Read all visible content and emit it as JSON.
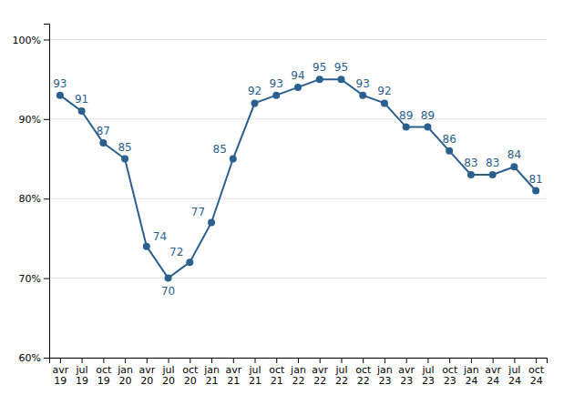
{
  "chart_data": {
    "type": "line",
    "categories": [
      "avr\n19",
      "jul\n19",
      "oct\n19",
      "jan\n20",
      "avr\n20",
      "jul\n20",
      "oct\n20",
      "jan\n21",
      "avr\n21",
      "jul\n21",
      "oct\n21",
      "jan\n22",
      "avr\n22",
      "jul\n22",
      "oct\n22",
      "jan\n23",
      "avr\n23",
      "jul\n23",
      "oct\n23",
      "jan\n24",
      "avr\n24",
      "jul\n24",
      "oct\n24"
    ],
    "values": [
      93,
      91,
      87,
      85,
      74,
      70,
      72,
      77,
      85,
      92,
      93,
      94,
      95,
      95,
      93,
      92,
      89,
      89,
      86,
      83,
      83,
      84,
      81
    ],
    "color": "#2B5F8E",
    "marker": "circle",
    "line_style": "solid",
    "data_labels": true,
    "ylim": [
      60,
      102
    ],
    "yticks": [
      {
        "value": 60,
        "label": "60%"
      },
      {
        "value": 70,
        "label": "70%"
      },
      {
        "value": 80,
        "label": "80%"
      },
      {
        "value": 90,
        "label": "90%"
      },
      {
        "value": 100,
        "label": "100%"
      }
    ],
    "grid": true
  }
}
